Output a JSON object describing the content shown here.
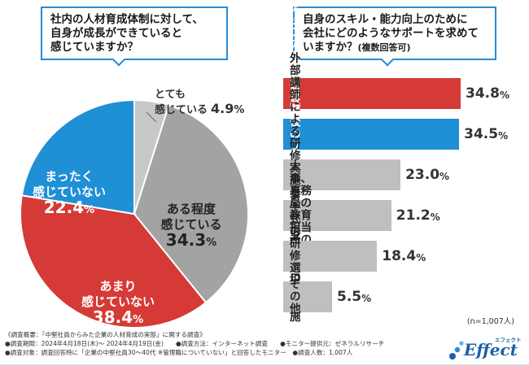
{
  "questions": {
    "left": "社内の人材育成体制に対して、\n自身が成長ができていると\n感じていますか？",
    "right": "自身のスキル・能力向上のために\n会社にどのようなサポートを求めて\nいますか？",
    "right_suffix": "(複数回答可)"
  },
  "colors": {
    "blue": "#1f8fd6",
    "red": "#d53a36",
    "gray": "#a3a3a3",
    "lightgray": "#c8c8c8",
    "barGray": "#bfbfbf",
    "frameBlue": "#2a8ad1"
  },
  "chart_data": [
    {
      "type": "pie",
      "title": "社内の人材育成体制に対して、自身が成長ができていると感じていますか？",
      "slices": [
        {
          "label": "とても\n感じている",
          "value": 4.9,
          "display": "4.9",
          "color_key": "lightgray"
        },
        {
          "label": "ある程度\n感じている",
          "value": 34.3,
          "display": "34.3",
          "color_key": "gray"
        },
        {
          "label": "あまり\n感じていない",
          "value": 38.4,
          "display": "38.4",
          "color_key": "red"
        },
        {
          "label": "まったく\n感じていない",
          "value": 22.4,
          "display": "22.4",
          "color_key": "blue"
        }
      ],
      "unit": "%"
    },
    {
      "type": "bar",
      "orientation": "horizontal",
      "title": "自身のスキル・能力向上のために会社にどのようなサポートを求めていますか？(複数回答可)",
      "categories": [
        "キャリアアップのための\n自分だけの人材育成の計画",
        "研修前後のフォロー",
        "外部講師による研修実施\nとその後のフォロー",
        "人事、事務局の\n教育担当者の相談窓口",
        "挙手式の\n研修選択の実施",
        "その他"
      ],
      "values": [
        34.8,
        34.5,
        23.0,
        21.2,
        18.4,
        5.5
      ],
      "display": [
        "34.8",
        "34.5",
        "23.0",
        "21.2",
        "18.4",
        "5.5"
      ],
      "unit": "%",
      "xlim": [
        0,
        40
      ]
    }
  ],
  "sample_note": "(n=1,007人)",
  "footnotes": [
    "《調査概要：「中堅社員からみた企業の人材育成の実態」に関する調査》",
    "●調査期間：2024年4月18日(木)～ 2024年4月19日(金)　　●調査方法：インターネット調査　　●モニター提供元：ゼネラルリサーチ",
    "●調査対象：調査回答時に「企業の中堅社員30～40代 ※管理職についていない」と回答したモニター　●調査人数：1,007人"
  ],
  "logo": {
    "brand": "Effect",
    "kana": "エフェクト"
  }
}
